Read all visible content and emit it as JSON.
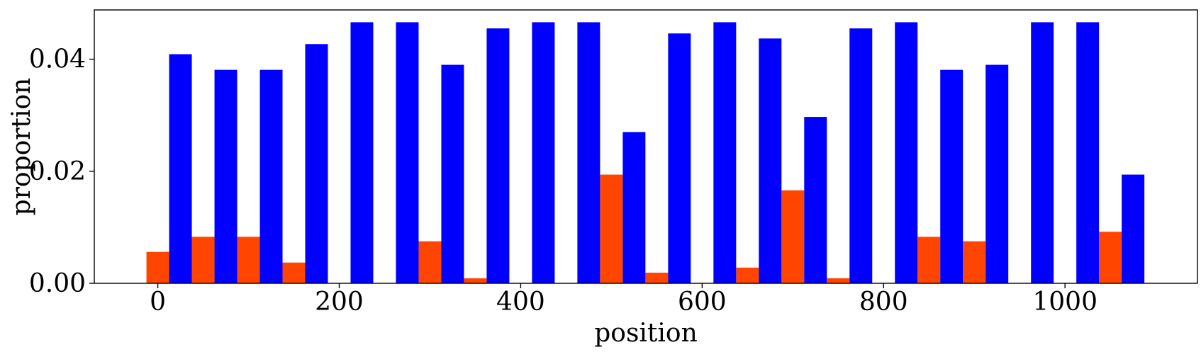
{
  "chart_data": {
    "type": "bar",
    "xlabel": "position",
    "ylabel": "proportion",
    "xlim": [
      -70,
      1146
    ],
    "ylim": [
      0,
      0.0488
    ],
    "bar_width": 25,
    "xticks": [
      0,
      200,
      400,
      600,
      800,
      1000
    ],
    "xtick_labels": [
      "0",
      "200",
      "400",
      "600",
      "800",
      "1000"
    ],
    "yticks": [
      0.0,
      0.02,
      0.04
    ],
    "ytick_labels": [
      "0.00",
      "0.02",
      "0.04"
    ],
    "grid": false,
    "legend": "none",
    "series": [
      {
        "color": "#ff4500",
        "x": [
          0,
          50,
          100,
          150,
          200,
          250,
          300,
          350,
          400,
          450,
          500,
          550,
          600,
          650,
          700,
          750,
          800,
          850,
          900,
          950,
          1000,
          1050
        ],
        "values": [
          0.0056,
          0.0083,
          0.0083,
          0.0037,
          0.0,
          0.0,
          0.0075,
          0.0009,
          0.0,
          0.0,
          0.0194,
          0.0019,
          0.0,
          0.0028,
          0.0166,
          0.0009,
          0.0,
          0.0083,
          0.0075,
          0.0,
          0.0,
          0.0092
        ]
      },
      {
        "color": "#0000ff",
        "x": [
          25,
          75,
          125,
          175,
          225,
          275,
          325,
          375,
          425,
          475,
          525,
          575,
          625,
          675,
          725,
          775,
          825,
          875,
          925,
          975,
          1025,
          1075
        ],
        "values": [
          0.0409,
          0.0381,
          0.0381,
          0.0427,
          0.0466,
          0.0466,
          0.039,
          0.0455,
          0.0466,
          0.0466,
          0.027,
          0.0446,
          0.0466,
          0.0437,
          0.0297,
          0.0455,
          0.0466,
          0.0381,
          0.039,
          0.0466,
          0.0466,
          0.0194
        ]
      }
    ]
  }
}
